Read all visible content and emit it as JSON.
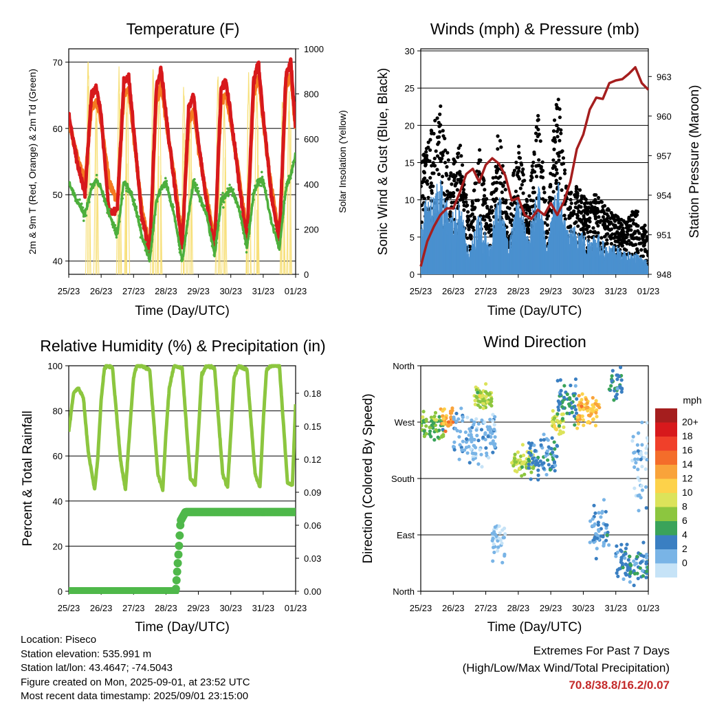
{
  "chart_data": [
    {
      "type": "line",
      "title": "Temperature (F)",
      "xlabel": "Time (Day/UTC)",
      "ylabel_left": "2m & 9m T (Red, Orange) & 2m Td (Green)",
      "ylabel_right": "Solar Insolation (Yellow)",
      "x_ticks": [
        "25/23",
        "26/23",
        "27/23",
        "28/23",
        "29/23",
        "30/23",
        "31/23",
        "01/23"
      ],
      "ylim_left": [
        38,
        72
      ],
      "y_ticks_left": [
        40,
        50,
        60,
        70
      ],
      "ylim_right": [
        0,
        1000
      ],
      "y_ticks_right": [
        0,
        200,
        400,
        600,
        800,
        1000
      ],
      "grid": "horizontal at left ticks",
      "x_days": [
        0,
        0.25,
        0.5,
        0.7,
        0.85,
        1,
        1.25,
        1.5,
        1.7,
        1.85,
        2,
        2.25,
        2.5,
        2.7,
        2.85,
        3,
        3.25,
        3.5,
        3.7,
        3.85,
        4,
        4.25,
        4.5,
        4.7,
        4.85,
        5,
        5.25,
        5.5,
        5.7,
        5.85,
        6,
        6.25,
        6.5,
        6.7,
        6.85,
        7
      ],
      "series": [
        {
          "name": "2m T",
          "color": "#d7191c",
          "values": [
            62,
            55,
            50,
            65,
            66,
            62,
            47,
            48,
            67,
            68,
            60,
            47,
            41,
            66,
            69,
            62,
            52,
            42,
            63,
            65,
            58,
            49,
            42,
            66,
            67,
            62,
            52,
            43,
            67,
            70,
            62,
            50,
            43,
            68,
            70,
            60
          ]
        },
        {
          "name": "9m T",
          "color": "#f47a20",
          "values": [
            61,
            56,
            52,
            63,
            64,
            61,
            52,
            49,
            65,
            66,
            59,
            48,
            42,
            64,
            67,
            61,
            53,
            43,
            61,
            63,
            57,
            50,
            43,
            64,
            65,
            61,
            53,
            44,
            65,
            68,
            61,
            51,
            44,
            66,
            68,
            60
          ]
        },
        {
          "name": "2m Td",
          "color": "#4daf3c",
          "values": [
            52,
            49,
            47,
            51,
            52,
            51,
            47,
            44,
            52,
            51,
            49,
            44,
            40,
            49,
            51,
            52,
            47,
            40,
            47,
            52,
            50,
            47,
            41,
            49,
            50,
            51,
            48,
            42,
            50,
            52,
            52,
            46,
            42,
            51,
            53,
            56
          ]
        },
        {
          "name": "Solar Insolation",
          "color": "#f7e07a",
          "axis": "right",
          "peaks_day": [
            0.6,
            0.85,
            1.55,
            1.8,
            2.6,
            2.8,
            3.55,
            3.75,
            4.6,
            4.8,
            5.55,
            5.8,
            6.6,
            6.8
          ],
          "peaks_value": [
            980,
            800,
            950,
            880,
            960,
            900,
            870,
            780,
            900,
            820,
            900,
            860,
            870,
            840
          ]
        }
      ]
    },
    {
      "type": "scatter",
      "title": "Winds (mph) & Pressure (mb)",
      "xlabel": "Time (Day/UTC)",
      "ylabel_left": "Sonic Wind & Gust (Blue, Black)",
      "ylabel_right": "Station Pressure (Maroon)",
      "x_ticks": [
        "25/23",
        "26/23",
        "27/23",
        "28/23",
        "29/23",
        "30/23",
        "31/23",
        "01/23"
      ],
      "ylim_left": [
        0,
        30
      ],
      "y_ticks_left": [
        0,
        5,
        10,
        15,
        20,
        25,
        30
      ],
      "ylim_right": [
        948,
        965.1
      ],
      "y_ticks_right": [
        948,
        951,
        954,
        957,
        960,
        963
      ],
      "grid": "horizontal at left ticks",
      "wind_envelope": {
        "x_days": [
          0,
          0.3,
          0.6,
          0.9,
          1.2,
          1.5,
          1.8,
          2.1,
          2.4,
          2.7,
          3.0,
          3.3,
          3.6,
          3.9,
          4.2,
          4.5,
          4.8,
          5.1,
          5.4,
          5.7,
          6.0,
          6.3,
          6.6,
          6.9,
          7.0
        ],
        "sustained_max": [
          9,
          11,
          14,
          8,
          10,
          3,
          9,
          4,
          12,
          4,
          11,
          5,
          13,
          4,
          14,
          6,
          7,
          5,
          6,
          4,
          4,
          3,
          3,
          2,
          2
        ],
        "gust_max": [
          15,
          19,
          23,
          14,
          18,
          7,
          17,
          8,
          20,
          8,
          19,
          9,
          22,
          8,
          26,
          11,
          12,
          10,
          11,
          9,
          8,
          7,
          9,
          7,
          4
        ]
      },
      "pressure": {
        "color": "#a51e1e",
        "x_days": [
          0,
          0.2,
          0.4,
          0.6,
          0.8,
          1.0,
          1.2,
          1.4,
          1.6,
          1.8,
          2.0,
          2.2,
          2.4,
          2.6,
          2.8,
          3.0,
          3.2,
          3.4,
          3.6,
          3.8,
          4.0,
          4.2,
          4.4,
          4.6,
          4.8,
          5.0,
          5.2,
          5.4,
          5.6,
          5.8,
          6.0,
          6.2,
          6.4,
          6.6,
          6.8,
          7.0
        ],
        "values": [
          948.6,
          950.5,
          951.6,
          952.5,
          953.0,
          953.0,
          954.2,
          955.6,
          956.0,
          955.0,
          956.3,
          956.8,
          956.4,
          955.5,
          953.6,
          953.8,
          952.5,
          952.2,
          952.9,
          952.5,
          953.4,
          952.5,
          953.5,
          955.0,
          957.5,
          958.6,
          960.5,
          961.4,
          961.3,
          962.5,
          962.7,
          962.8,
          963.2,
          963.7,
          962.5,
          962.0
        ]
      }
    },
    {
      "type": "line",
      "title": "Relative Humidity (%) & Precipitation (in)",
      "xlabel": "Time (Day/UTC)",
      "ylabel_left": "Percent & Total Rainfall",
      "x_ticks": [
        "25/23",
        "26/23",
        "27/23",
        "28/23",
        "29/23",
        "30/23",
        "31/23",
        "01/23"
      ],
      "ylim_left": [
        0,
        100
      ],
      "y_ticks_left": [
        0,
        20,
        40,
        60,
        80,
        100
      ],
      "ylim_right": [
        0,
        0.205
      ],
      "y_ticks_right": [
        "0.00",
        "0.03",
        "0.06",
        "0.09",
        "0.12",
        "0.15",
        "0.18"
      ],
      "grid": "horizontal at left ticks",
      "series": [
        {
          "name": "Relative Humidity",
          "color": "#8cc63f",
          "x_days": [
            0,
            0.15,
            0.3,
            0.45,
            0.6,
            0.8,
            0.9,
            1.0,
            1.1,
            1.2,
            1.35,
            1.6,
            1.75,
            1.9,
            2.0,
            2.1,
            2.25,
            2.5,
            2.75,
            2.9,
            3.0,
            3.1,
            3.25,
            3.5,
            3.75,
            3.9,
            4.0,
            4.1,
            4.25,
            4.5,
            4.75,
            4.9,
            5.0,
            5.1,
            5.25,
            5.5,
            5.75,
            5.9,
            6.0,
            6.1,
            6.25,
            6.5,
            6.75,
            6.9,
            7.0
          ],
          "values": [
            71,
            88,
            90,
            86,
            62,
            45,
            60,
            85,
            99,
            100,
            99,
            58,
            45,
            75,
            95,
            100,
            100,
            98,
            52,
            45,
            70,
            90,
            100,
            99,
            50,
            47,
            70,
            96,
            100,
            99,
            52,
            46,
            70,
            95,
            100,
            98,
            52,
            46,
            75,
            98,
            100,
            100,
            48,
            47,
            83
          ]
        },
        {
          "name": "Total Rainfall",
          "color": "#4fb84a",
          "axis": "right",
          "x_days": [
            0,
            3.3,
            3.4,
            3.45,
            3.6,
            7.0
          ],
          "values": [
            0.0,
            0.0,
            0.04,
            0.064,
            0.072,
            0.072
          ]
        }
      ]
    },
    {
      "type": "scatter",
      "title": "Wind Direction",
      "xlabel": "Time (Day/UTC)",
      "ylabel_left": "Direction (Colored By Speed)",
      "x_ticks": [
        "25/23",
        "26/23",
        "27/23",
        "28/23",
        "29/23",
        "30/23",
        "31/23",
        "01/23"
      ],
      "y_ticks_left": [
        "North",
        "East",
        "South",
        "West",
        "North"
      ],
      "ylim_degrees": [
        0,
        360
      ],
      "grid": "horizontal at left ticks",
      "colorbar": {
        "title": "mph",
        "labels": [
          "20+",
          "18",
          "16",
          "14",
          "12",
          "10",
          "8",
          "6",
          "4",
          "2",
          "0"
        ],
        "colors": [
          "#a51e1e",
          "#d7191c",
          "#f0402a",
          "#f46d2a",
          "#f9a33a",
          "#fdd24a",
          "#dce35a",
          "#8cc63f",
          "#3aa35a",
          "#3a7fc2",
          "#79b4e6",
          "#c6e3f7"
        ]
      },
      "clusters": [
        {
          "day_from": 0.0,
          "day_to": 0.7,
          "dir_center": 265,
          "dir_spread": 30,
          "speed": 7
        },
        {
          "day_from": 0.6,
          "day_to": 1.0,
          "dir_center": 275,
          "dir_spread": 25,
          "speed": 14
        },
        {
          "day_from": 1.0,
          "day_to": 2.3,
          "dir_center": 250,
          "dir_spread": 60,
          "speed": 2
        },
        {
          "day_from": 1.6,
          "day_to": 2.2,
          "dir_center": 310,
          "dir_spread": 35,
          "speed": 9
        },
        {
          "day_from": 2.2,
          "day_to": 2.6,
          "dir_center": 80,
          "dir_spread": 50,
          "speed": 1
        },
        {
          "day_from": 2.8,
          "day_to": 3.5,
          "dir_center": 205,
          "dir_spread": 30,
          "speed": 9
        },
        {
          "day_from": 3.3,
          "day_to": 4.2,
          "dir_center": 215,
          "dir_spread": 50,
          "speed": 4
        },
        {
          "day_from": 4.0,
          "day_to": 4.4,
          "dir_center": 270,
          "dir_spread": 30,
          "speed": 10
        },
        {
          "day_from": 4.2,
          "day_to": 4.8,
          "dir_center": 300,
          "dir_spread": 50,
          "speed": 5
        },
        {
          "day_from": 4.8,
          "day_to": 5.5,
          "dir_center": 290,
          "dir_spread": 35,
          "speed": 13
        },
        {
          "day_from": 5.2,
          "day_to": 5.8,
          "dir_center": 100,
          "dir_spread": 60,
          "speed": 3
        },
        {
          "day_from": 6.0,
          "day_to": 7.0,
          "dir_center": 40,
          "dir_spread": 40,
          "speed": 4
        },
        {
          "day_from": 5.8,
          "day_to": 6.2,
          "dir_center": 330,
          "dir_spread": 30,
          "speed": 5
        },
        {
          "day_from": 6.5,
          "day_to": 7.0,
          "dir_center": 200,
          "dir_spread": 120,
          "speed": 1
        }
      ]
    }
  ],
  "footer": {
    "location": "Location: Piseco",
    "elevation": "Station elevation: 535.991 m",
    "latlon": "Station lat/lon: 43.4647; -74.5043",
    "created": "Figure created on Mon, 2025-09-01, at 23:52 UTC",
    "recent": "Most recent data timestamp: 2025/09/01 23:15:00",
    "extremes_title": "Extremes For Past 7 Days",
    "extremes_subtitle": "(High/Low/Max Wind/Total Precipitation)",
    "extremes_values": "70.8/38.8/16.2/0.07"
  }
}
